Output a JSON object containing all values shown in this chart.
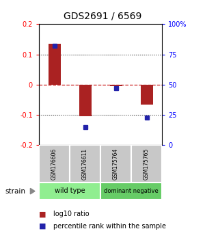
{
  "title": "GDS2691 / 6569",
  "samples": [
    "GSM176606",
    "GSM176611",
    "GSM175764",
    "GSM175765"
  ],
  "log10_ratios": [
    0.135,
    -0.105,
    -0.005,
    -0.065
  ],
  "percentile_ranks": [
    0.82,
    0.15,
    0.47,
    0.23
  ],
  "groups": [
    {
      "name": "wild type",
      "samples": [
        0,
        1
      ],
      "color": "#90ee90"
    },
    {
      "name": "dominant negative",
      "samples": [
        2,
        3
      ],
      "color": "#66cc66"
    }
  ],
  "ylim": [
    -0.2,
    0.2
  ],
  "bar_color": "#aa2222",
  "dot_color": "#2222aa",
  "hline_color": "#cc2222",
  "grid_color": "#333333",
  "bg_color": "#ffffff",
  "plot_bg": "#ffffff",
  "label_fontsize": 8,
  "title_fontsize": 10,
  "sample_cell_color": "#c8c8c8",
  "cell_edge_color": "#ffffff"
}
